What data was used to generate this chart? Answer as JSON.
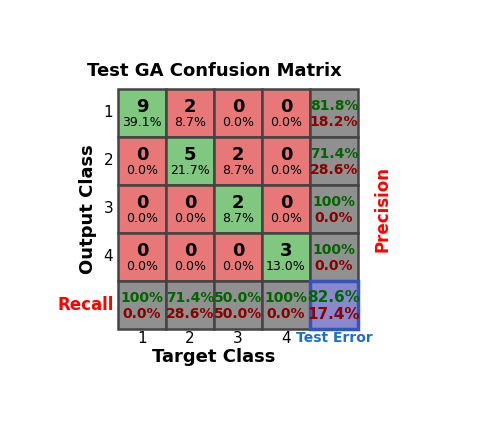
{
  "title": "Test GA Confusion Matrix",
  "matrix": [
    [
      9,
      2,
      0,
      0
    ],
    [
      0,
      5,
      2,
      0
    ],
    [
      0,
      0,
      2,
      0
    ],
    [
      0,
      0,
      0,
      3
    ]
  ],
  "cell_pct": [
    [
      "39.1%",
      "8.7%",
      "0.0%",
      "0.0%"
    ],
    [
      "0.0%",
      "21.7%",
      "8.7%",
      "0.0%"
    ],
    [
      "0.0%",
      "0.0%",
      "8.7%",
      "0.0%"
    ],
    [
      "0.0%",
      "0.0%",
      "0.0%",
      "13.0%"
    ]
  ],
  "precision_top": [
    "81.8%",
    "71.4%",
    "100%",
    "100%"
  ],
  "precision_bot": [
    "18.2%",
    "28.6%",
    "0.0%",
    "0.0%"
  ],
  "recall_top": [
    "100%",
    "71.4%",
    "50.0%",
    "100%"
  ],
  "recall_bot": [
    "0.0%",
    "28.6%",
    "50.0%",
    "0.0%"
  ],
  "overall_top": "82.6%",
  "overall_bot": "17.4%",
  "color_correct": "#80c880",
  "color_wrong": "#e87878",
  "color_side": "#909090",
  "color_overall": "#8888cc",
  "color_green_text": "#006400",
  "color_dark_red_text": "#8b0000",
  "color_blue_text": "#1a6fcc",
  "xlabel": "Target Class",
  "ylabel": "Output Class",
  "row_labels": [
    "1",
    "2",
    "3",
    "4"
  ],
  "col_labels": [
    "1",
    "2",
    "3",
    "4"
  ],
  "precision_label": "Precision",
  "recall_label": "Recall",
  "test_error_label": "Test Error"
}
